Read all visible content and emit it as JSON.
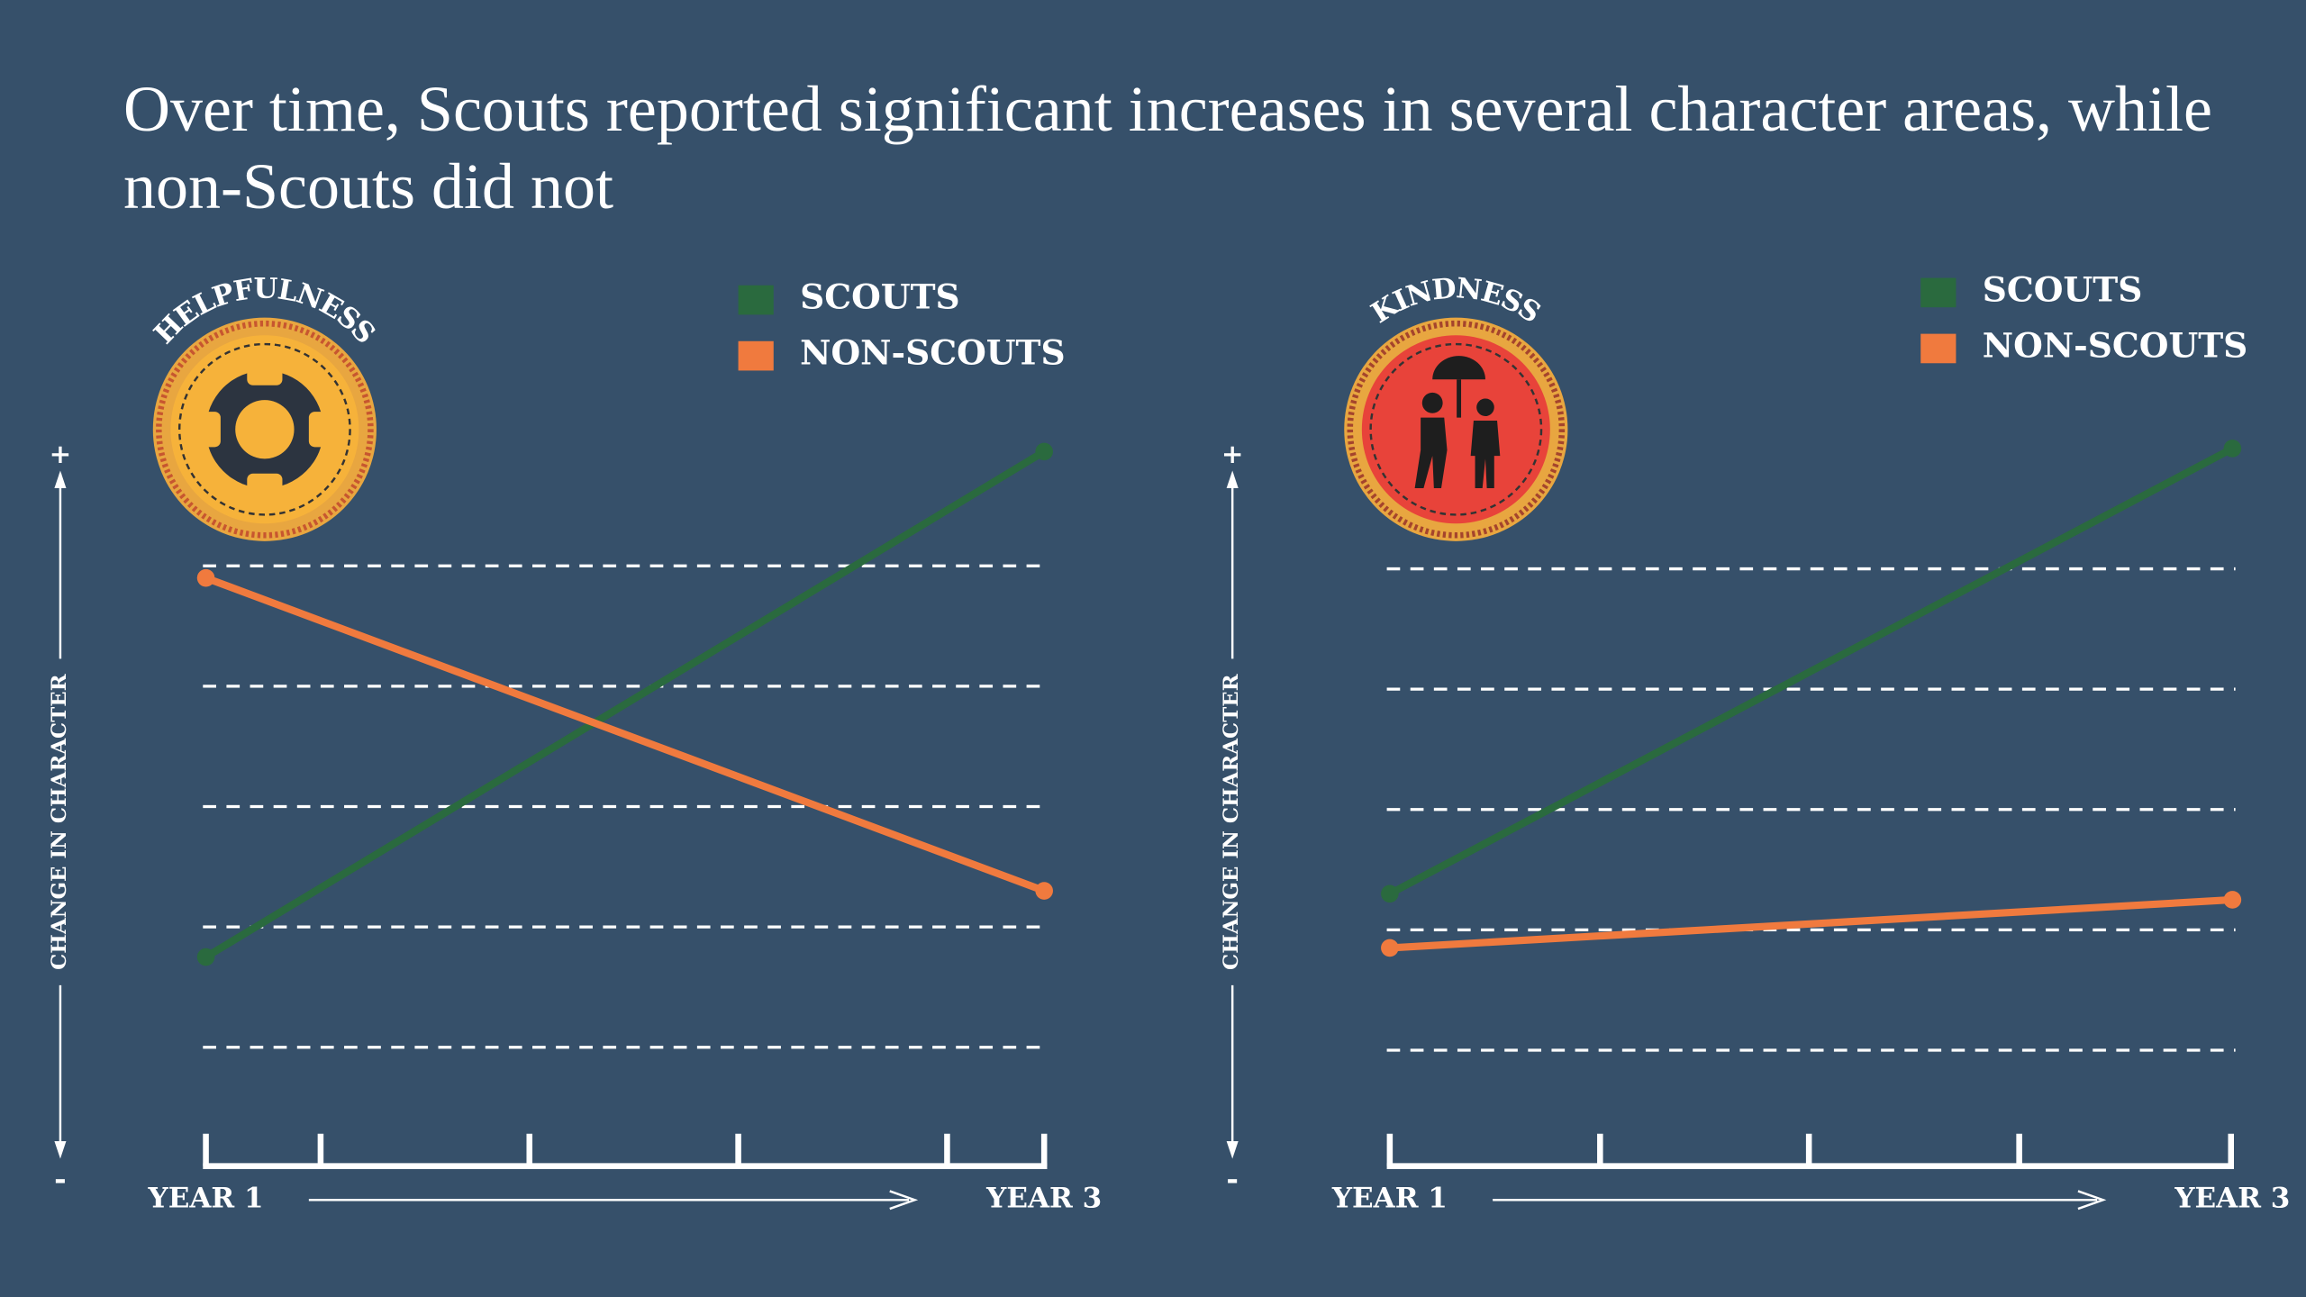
{
  "title": "Over time, Scouts reported significant increases in several character areas, while non-Scouts did not",
  "chart_data": [
    {
      "type": "line",
      "badge": "HELPFULNESS",
      "ylabel": "CHANGE IN CHARACTER",
      "y_top_label": "+",
      "y_bottom_label": "-",
      "categories": [
        "YEAR 1",
        "YEAR 3"
      ],
      "series": [
        {
          "name": "SCOUTS",
          "color": "#2a6a3e",
          "values": [
            1.75,
            5.95
          ]
        },
        {
          "name": "NON-SCOUTS",
          "color": "#f07a3e",
          "values": [
            4.9,
            2.3
          ]
        }
      ],
      "ylim": [
        0,
        6
      ],
      "yticks": [
        1,
        2,
        3,
        4,
        5
      ],
      "grid": true
    },
    {
      "type": "line",
      "badge": "KINDNESS",
      "ylabel": "CHANGE IN CHARACTER",
      "y_top_label": "+",
      "y_bottom_label": "-",
      "categories": [
        "YEAR 1",
        "YEAR 3"
      ],
      "series": [
        {
          "name": "SCOUTS",
          "color": "#2a6a3e",
          "values": [
            2.3,
            6
          ]
        },
        {
          "name": "NON-SCOUTS",
          "color": "#f07a3e",
          "values": [
            1.85,
            2.25
          ]
        }
      ],
      "ylim": [
        0,
        6
      ],
      "yticks": [
        1,
        2,
        3,
        4,
        5
      ],
      "grid": true
    }
  ]
}
